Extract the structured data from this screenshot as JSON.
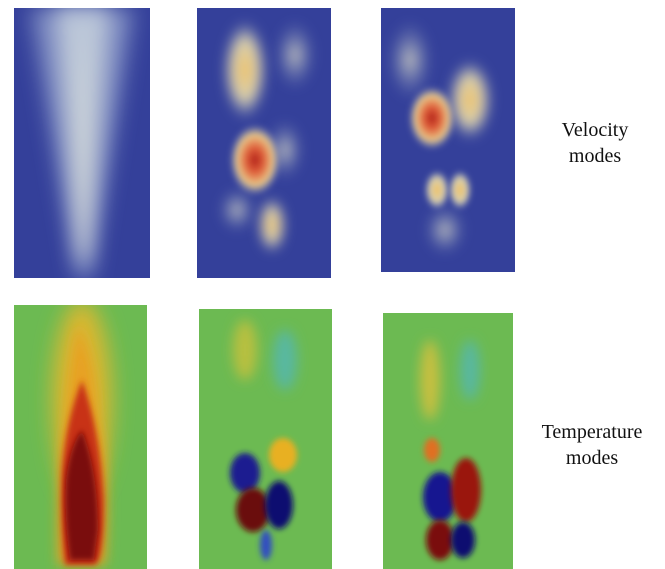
{
  "labels": [
    {
      "lines": [
        "Velocity",
        "modes"
      ]
    },
    {
      "lines": [
        "Temperature",
        "modes"
      ]
    }
  ]
}
